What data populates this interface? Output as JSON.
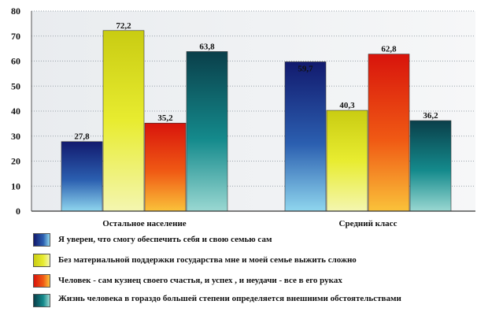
{
  "chart_data": {
    "type": "bar",
    "categories": [
      "Остальное население",
      "Средний класс"
    ],
    "series": [
      {
        "name": "Я уверен, что смогу обеспечить себя и свою семью сам",
        "values": [
          27.8,
          59.7
        ],
        "color": "#1a3a8a"
      },
      {
        "name": "Без материальной поддержки государства мне и моей семье выжить сложно",
        "values": [
          72.2,
          40.3
        ],
        "color": "#d6dc10"
      },
      {
        "name": "Человек - сам кузнец своего счастья, и успех , и неудачи - все в его руках",
        "values": [
          35.2,
          62.8
        ],
        "color": "#e8260e"
      },
      {
        "name": "Жизнь человека в гораздо большей степени определяется внешними обстоятельствами",
        "values": [
          63.8,
          36.2
        ],
        "color": "#0a5e60"
      }
    ],
    "value_labels": [
      [
        "27,8",
        "59,7"
      ],
      [
        "72,2",
        "40,3"
      ],
      [
        "35,2",
        "62,8"
      ],
      [
        "63,8",
        "36,2"
      ]
    ],
    "ylim": [
      0,
      80
    ],
    "yticks": [
      "0",
      "10",
      "20",
      "30",
      "40",
      "50",
      "60",
      "70",
      "80"
    ],
    "grid": true,
    "legend_position": "bottom"
  }
}
